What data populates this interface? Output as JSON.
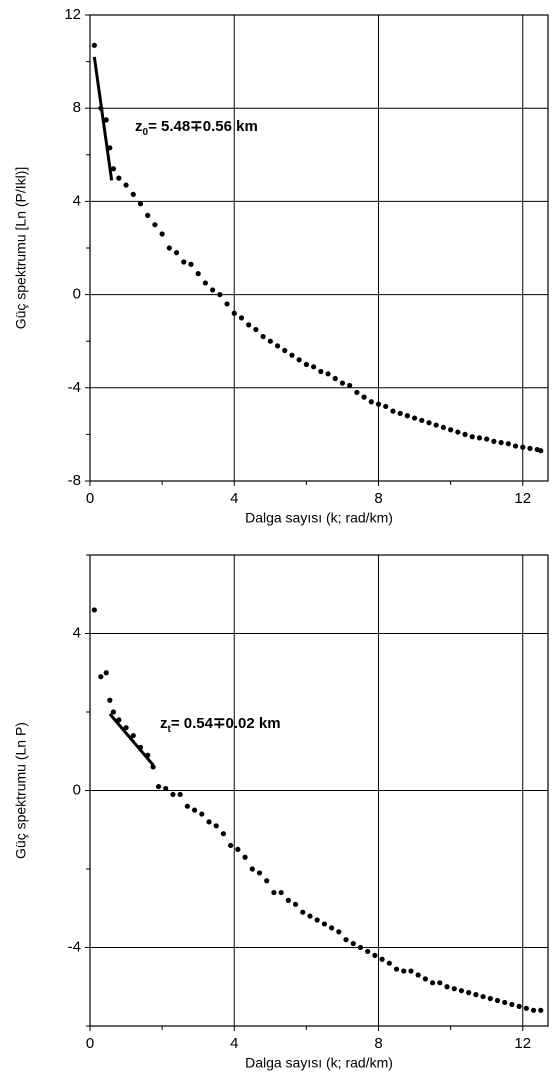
{
  "chart_data": [
    {
      "type": "scatter",
      "x_label": "Dalga sayısı (k; rad/km)",
      "y_label": "Güç spektrumu [Ln (P/Ikl)]",
      "xlim": [
        0,
        12.7
      ],
      "ylim": [
        -8,
        12
      ],
      "xticks": [
        0,
        4,
        8,
        12
      ],
      "yticks": [
        -8,
        -4,
        0,
        4,
        8,
        12
      ],
      "xminor_ticks": [
        2,
        6,
        10
      ],
      "yminor_ticks": [
        -6,
        -2,
        2,
        6,
        10
      ],
      "grid": true,
      "annotation": {
        "symbol": "z",
        "subscript": "0",
        "text": "= 5.48∓0.56 km"
      },
      "series": [
        {
          "type": "scatter",
          "color": "#000000",
          "x": [
            0.12,
            0.3,
            0.45,
            0.55,
            0.65,
            0.8,
            1.0,
            1.2,
            1.4,
            1.6,
            1.8,
            2.0,
            2.2,
            2.4,
            2.6,
            2.8,
            3.0,
            3.2,
            3.4,
            3.6,
            3.8,
            4.0,
            4.2,
            4.4,
            4.6,
            4.8,
            5.0,
            5.2,
            5.4,
            5.6,
            5.8,
            6.0,
            6.2,
            6.4,
            6.6,
            6.8,
            7.0,
            7.2,
            7.4,
            7.6,
            7.8,
            8.0,
            8.2,
            8.4,
            8.6,
            8.8,
            9.0,
            9.2,
            9.4,
            9.6,
            9.8,
            10.0,
            10.2,
            10.4,
            10.6,
            10.8,
            11.0,
            11.2,
            11.4,
            11.6,
            11.8,
            12.0,
            12.2,
            12.4,
            12.5
          ],
          "values": [
            10.7,
            8.0,
            7.5,
            6.3,
            5.4,
            5.0,
            4.7,
            4.3,
            3.9,
            3.4,
            3.0,
            2.6,
            2.0,
            1.8,
            1.4,
            1.3,
            0.9,
            0.5,
            0.2,
            0.0,
            -0.4,
            -0.8,
            -1.0,
            -1.3,
            -1.5,
            -1.8,
            -2.0,
            -2.2,
            -2.4,
            -2.6,
            -2.8,
            -3.0,
            -3.1,
            -3.3,
            -3.4,
            -3.6,
            -3.8,
            -3.9,
            -4.2,
            -4.4,
            -4.6,
            -4.7,
            -4.8,
            -5.0,
            -5.1,
            -5.2,
            -5.3,
            -5.4,
            -5.5,
            -5.6,
            -5.7,
            -5.8,
            -5.9,
            -6.0,
            -6.1,
            -6.15,
            -6.2,
            -6.3,
            -6.35,
            -6.4,
            -6.5,
            -6.55,
            -6.6,
            -6.65,
            -6.7
          ]
        },
        {
          "type": "line",
          "color": "#000000",
          "x": [
            0.12,
            0.6
          ],
          "values": [
            10.2,
            4.9
          ]
        }
      ]
    },
    {
      "type": "scatter",
      "x_label": "Dalga sayısı (k; rad/km)",
      "y_label": "Güç spektrumu (Ln P)",
      "xlim": [
        0,
        12.7
      ],
      "ylim": [
        -6,
        6
      ],
      "xticks": [
        0,
        4,
        8,
        12
      ],
      "yticks": [
        -4,
        0,
        4
      ],
      "xminor_ticks": [
        2,
        6,
        10
      ],
      "yminor_ticks": [
        -6,
        -2,
        2,
        6
      ],
      "grid": true,
      "annotation": {
        "symbol": "z",
        "subscript": "t",
        "text": "= 0.54∓0.02 km"
      },
      "series": [
        {
          "type": "scatter",
          "color": "#000000",
          "x": [
            0.12,
            0.3,
            0.45,
            0.55,
            0.65,
            0.8,
            1.0,
            1.2,
            1.4,
            1.6,
            1.75,
            1.9,
            2.1,
            2.3,
            2.5,
            2.7,
            2.9,
            3.1,
            3.3,
            3.5,
            3.7,
            3.9,
            4.1,
            4.3,
            4.5,
            4.7,
            4.9,
            5.1,
            5.3,
            5.5,
            5.7,
            5.9,
            6.1,
            6.3,
            6.5,
            6.7,
            6.9,
            7.1,
            7.3,
            7.5,
            7.7,
            7.9,
            8.1,
            8.3,
            8.5,
            8.7,
            8.9,
            9.1,
            9.3,
            9.5,
            9.7,
            9.9,
            10.1,
            10.3,
            10.5,
            10.7,
            10.9,
            11.1,
            11.3,
            11.5,
            11.7,
            11.9,
            12.1,
            12.3,
            12.5
          ],
          "values": [
            4.6,
            2.9,
            3.0,
            2.3,
            2.0,
            1.8,
            1.6,
            1.4,
            1.1,
            0.9,
            0.6,
            0.1,
            0.05,
            -0.1,
            -0.1,
            -0.4,
            -0.5,
            -0.6,
            -0.8,
            -0.9,
            -1.1,
            -1.4,
            -1.5,
            -1.7,
            -2.0,
            -2.1,
            -2.3,
            -2.6,
            -2.6,
            -2.8,
            -2.9,
            -3.1,
            -3.2,
            -3.3,
            -3.4,
            -3.5,
            -3.6,
            -3.8,
            -3.9,
            -4.0,
            -4.1,
            -4.2,
            -4.3,
            -4.4,
            -4.55,
            -4.6,
            -4.6,
            -4.7,
            -4.8,
            -4.9,
            -4.9,
            -5.0,
            -5.05,
            -5.1,
            -5.15,
            -5.2,
            -5.25,
            -5.3,
            -5.35,
            -5.4,
            -5.45,
            -5.5,
            -5.55,
            -5.6,
            -5.6
          ]
        },
        {
          "type": "line",
          "color": "#000000",
          "x": [
            0.55,
            1.75
          ],
          "values": [
            1.95,
            0.65
          ]
        }
      ]
    }
  ]
}
